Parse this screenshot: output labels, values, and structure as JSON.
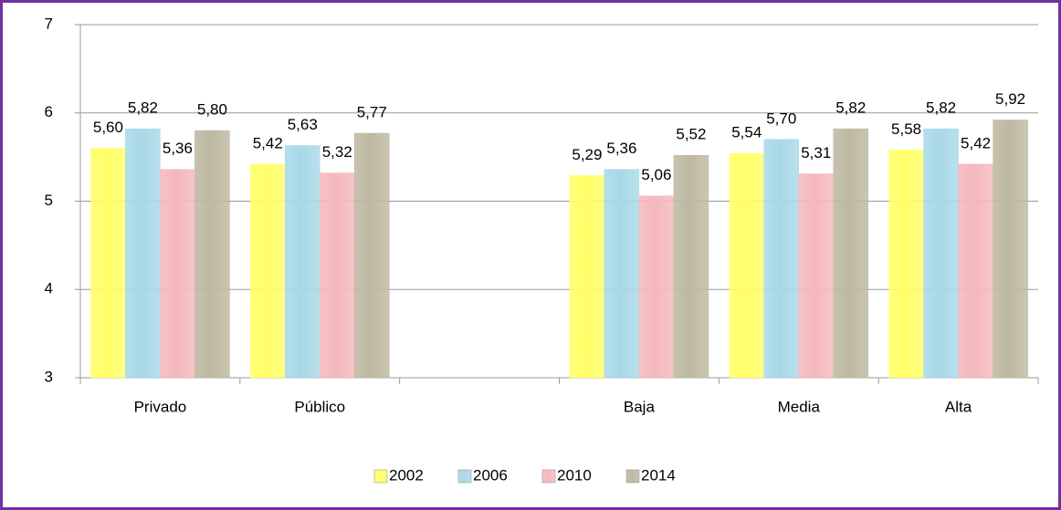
{
  "chart_data": {
    "type": "bar",
    "categories": [
      "Privado",
      "Público",
      null,
      "Baja",
      "Media",
      "Alta"
    ],
    "series": [
      {
        "name": "2002",
        "color": "#ffff66",
        "values": [
          5.6,
          5.42,
          null,
          5.29,
          5.54,
          5.58
        ],
        "value_labels": [
          "5,60",
          "5,42",
          null,
          "5,29",
          "5,54",
          "5,58"
        ]
      },
      {
        "name": "2006",
        "color": "#a8d8e8",
        "values": [
          5.82,
          5.63,
          null,
          5.36,
          5.7,
          5.82
        ],
        "value_labels": [
          "5,82",
          "5,63",
          null,
          "5,36",
          "5,70",
          "5,82"
        ]
      },
      {
        "name": "2010",
        "color": "#f4b8bc",
        "values": [
          5.36,
          5.32,
          null,
          5.06,
          5.31,
          5.42
        ],
        "value_labels": [
          "5,36",
          "5,32",
          null,
          "5,06",
          "5,31",
          "5,42"
        ]
      },
      {
        "name": "2014",
        "color": "#bdb8a0",
        "values": [
          5.8,
          5.77,
          null,
          5.52,
          5.82,
          5.92
        ],
        "value_labels": [
          "5,80",
          "5,77",
          null,
          "5,52",
          "5,82",
          "5,92"
        ]
      }
    ],
    "ylim": [
      3,
      7
    ],
    "yticks": [
      3,
      4,
      5,
      6,
      7
    ],
    "grid": true,
    "legend": "bottom"
  }
}
